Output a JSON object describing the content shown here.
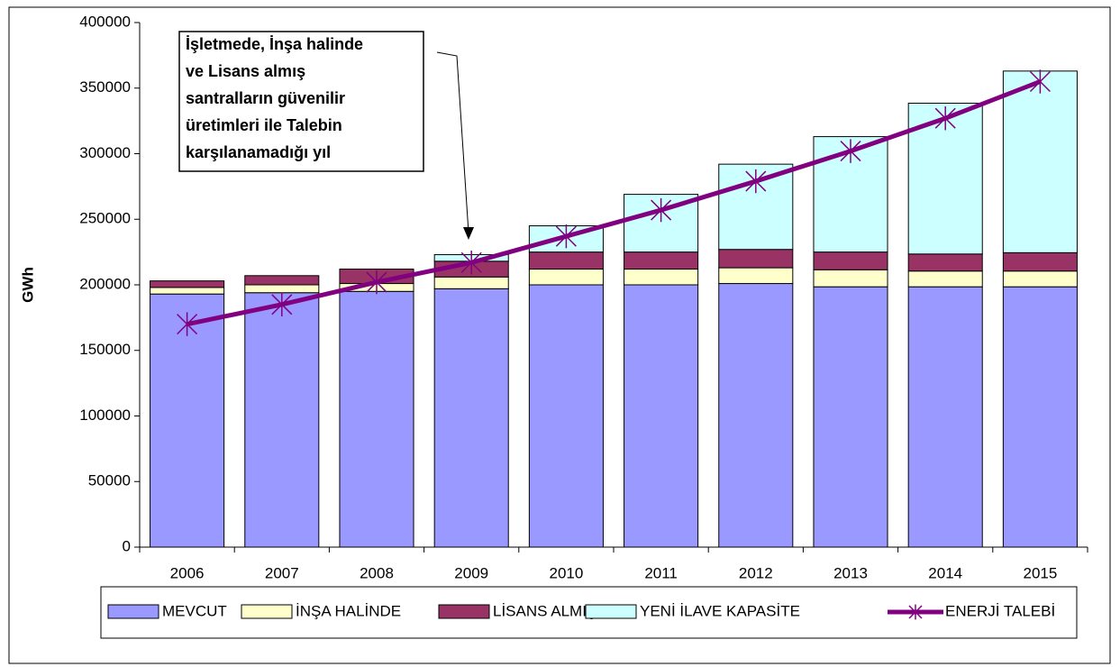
{
  "chart_data": {
    "type": "bar",
    "stacked": true,
    "y_label": "GWh",
    "annotation": [
      "İşletmede, İnşa halinde",
      "ve Lisans almış",
      "santralların güvenilir",
      "üretimleri ile Talebin",
      "karşılanamadığı yıl"
    ],
    "categories": [
      "2006",
      "2007",
      "2008",
      "2009",
      "2010",
      "2011",
      "2012",
      "2013",
      "2014",
      "2015"
    ],
    "series": [
      {
        "name": "MEVCUT",
        "color": "#9999ff",
        "values": [
          193000,
          194000,
          195000,
          197000,
          200000,
          200000,
          201000,
          198500,
          198500,
          198500
        ]
      },
      {
        "name": "İNŞA HALİNDE",
        "color": "#ffffcc",
        "values": [
          5000,
          6000,
          6000,
          9000,
          12000,
          12000,
          12000,
          13000,
          12000,
          12000
        ]
      },
      {
        "name": "LİSANS ALMIŞ",
        "color": "#993366",
        "values": [
          5000,
          7000,
          11000,
          12000,
          13000,
          13000,
          14000,
          13500,
          13000,
          14000
        ]
      },
      {
        "name": "YENİ İLAVE KAPASİTE",
        "color": "#ccffff",
        "values": [
          0,
          0,
          0,
          5000,
          20000,
          44000,
          65000,
          88000,
          115000,
          138500
        ]
      },
      {
        "name": "ENERJİ TALEBİ",
        "color": "#800080",
        "type": "line",
        "values": [
          170000,
          185000,
          202000,
          217000,
          237000,
          257000,
          279000,
          302000,
          327000,
          355000
        ]
      }
    ],
    "ylim": [
      0,
      400000
    ],
    "yticks": [
      0,
      50000,
      100000,
      150000,
      200000,
      250000,
      300000,
      350000,
      400000
    ]
  }
}
